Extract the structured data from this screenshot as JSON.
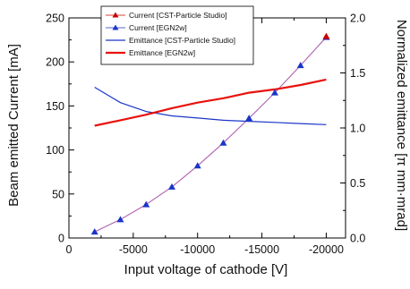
{
  "chart_data": {
    "type": "line",
    "xlabel": "Input voltage of cathode [V]",
    "ylabel": "Beam emitted Current [mA]",
    "y2label": "Normalized emittance [π mm·mrad]",
    "xlim": [
      0,
      -21500
    ],
    "ylim": [
      0,
      250
    ],
    "y2lim": [
      0,
      2.0
    ],
    "x_ticks": [
      0,
      -5000,
      -10000,
      -15000,
      -20000
    ],
    "y_ticks": [
      0,
      50,
      100,
      150,
      200,
      250
    ],
    "y2_ticks": [
      0.0,
      0.5,
      1.0,
      1.5,
      2.0
    ],
    "x_tick_labels": [
      "0",
      "-5000",
      "-10000",
      "-15000",
      "-20000"
    ],
    "y_tick_labels": [
      "0",
      "50",
      "100",
      "150",
      "200",
      "250"
    ],
    "y2_tick_labels": [
      "0.0",
      "0.5",
      "1.0",
      "1.5",
      "2.0"
    ],
    "legend_position": "top-center",
    "grid": false,
    "series": [
      {
        "name": "Current [CST-Particle Studio]",
        "axis": "left",
        "color": "#cc0000",
        "marker": "triangle-up",
        "line": false,
        "x": [
          -20000
        ],
        "y": [
          229
        ]
      },
      {
        "name": "Current [EGN2w]",
        "axis": "left",
        "color": "#1a35c8",
        "marker": "triangle-up",
        "line": false,
        "x": [
          -2000,
          -4000,
          -6000,
          -8000,
          -10000,
          -12000,
          -14000,
          -16000,
          -18000,
          -20000
        ],
        "y": [
          7,
          21,
          38,
          58,
          82,
          108,
          136,
          165,
          196,
          228
        ]
      },
      {
        "name": "Emittance [CST-Particle Studio]",
        "axis": "right",
        "color": "#1a35c8",
        "marker": "none",
        "line": true,
        "x": [
          -2000,
          -4000,
          -6000,
          -8000,
          -10000,
          -12000,
          -14000,
          -16000,
          -18000,
          -20000
        ],
        "y": [
          1.37,
          1.23,
          1.15,
          1.11,
          1.09,
          1.07,
          1.06,
          1.05,
          1.04,
          1.03
        ]
      },
      {
        "name": "Emittance [EGN2w]",
        "axis": "right",
        "color": "#e8120c",
        "marker": "none",
        "line": true,
        "x": [
          -2000,
          -4000,
          -6000,
          -8000,
          -10000,
          -12000,
          -14000,
          -16000,
          -18000,
          -20000
        ],
        "y": [
          1.02,
          1.07,
          1.12,
          1.18,
          1.23,
          1.27,
          1.32,
          1.35,
          1.39,
          1.44
        ]
      }
    ],
    "fit_curve": {
      "color": "#b060b0",
      "axis": "left",
      "x": [
        -2000,
        -4000,
        -6000,
        -8000,
        -10000,
        -12000,
        -14000,
        -16000,
        -18000,
        -20000
      ],
      "y": [
        7,
        21,
        38,
        58,
        82,
        108,
        136,
        165,
        196,
        228
      ]
    }
  }
}
